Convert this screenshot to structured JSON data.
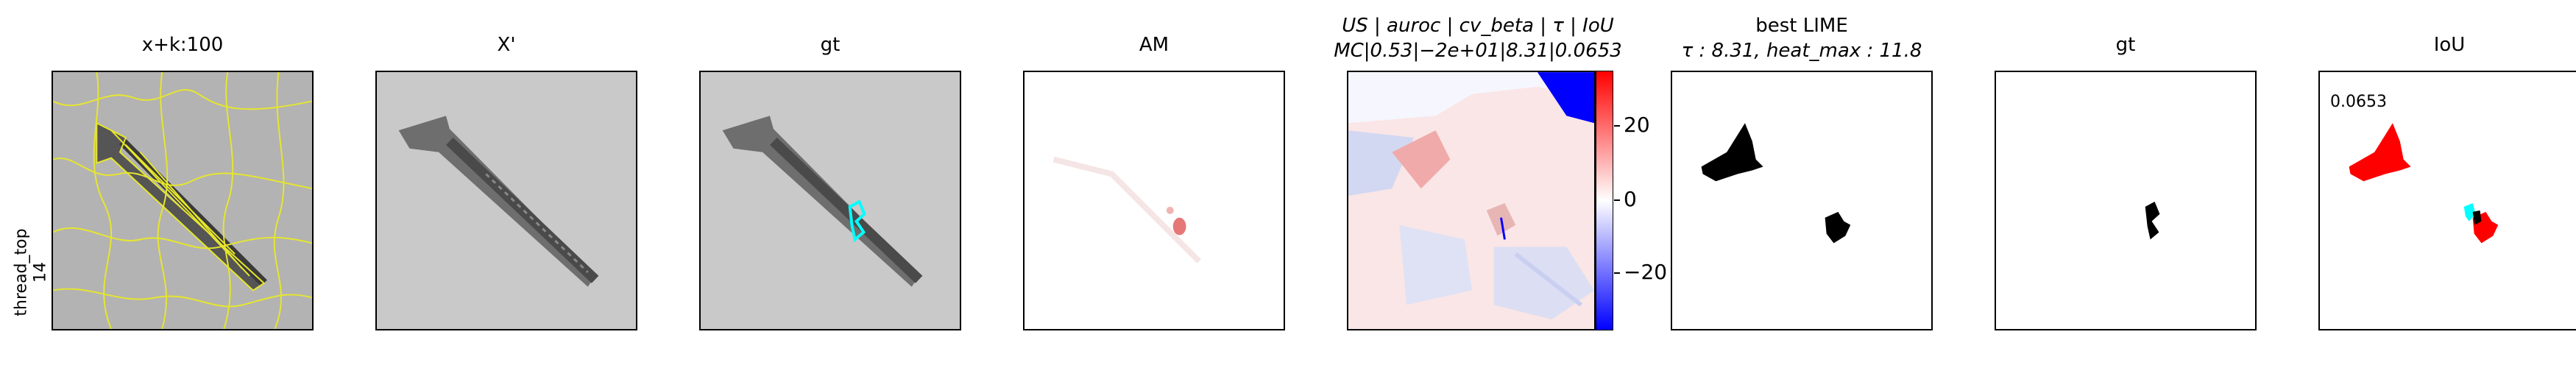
{
  "row_label": {
    "line1": "thread_top",
    "line2": "14"
  },
  "panels": [
    {
      "id": "p1",
      "title": "x+k:100"
    },
    {
      "id": "p2",
      "title": "X'"
    },
    {
      "id": "p3",
      "title": "gt"
    },
    {
      "id": "p4",
      "title": "AM"
    },
    {
      "id": "p5",
      "title_line1": "US | auroc | cv_beta | τ | IoU",
      "title_line2": "MC|0.53|−2e+01|8.31|0.0653"
    },
    {
      "id": "p6",
      "title_line1": "best LIME",
      "title_line2": "τ : 8.31, heat_max : 11.8"
    },
    {
      "id": "p7",
      "title": "gt"
    },
    {
      "id": "p8",
      "title": "IoU",
      "annotation": "0.0653"
    }
  ],
  "colorbar": {
    "ticks": [
      "20",
      "0",
      "−20"
    ],
    "tick_values": [
      20,
      0,
      -20
    ],
    "range": [
      -32,
      32
    ],
    "colors": {
      "top": "#ff0000",
      "mid": "#ffffff",
      "bottom": "#0000ff"
    }
  },
  "colors": {
    "superpixel": "#e6e62e",
    "gt_overlay": "#00ffff",
    "am_hotspot": "#e05555",
    "mask": "#000000",
    "iou_fp": "#ff0000",
    "iou_fn": "#00ffff"
  }
}
